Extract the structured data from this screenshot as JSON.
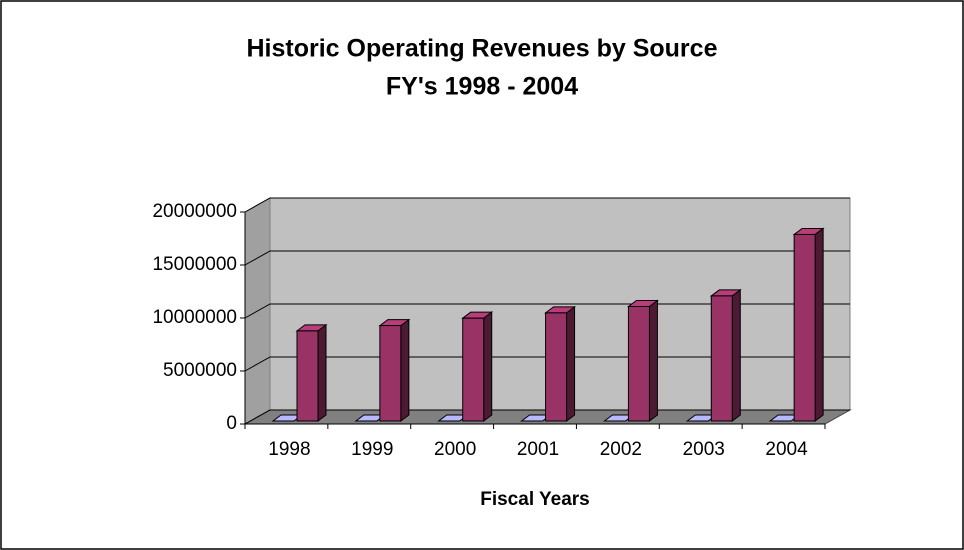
{
  "chart_data": {
    "type": "bar3d",
    "title": "Historic Operating Revenues by Source",
    "subtitle": "FY's 1998 - 2004",
    "x_label": "Fiscal Years",
    "categories": [
      "1998",
      "1999",
      "2000",
      "2001",
      "2002",
      "2003",
      "2004"
    ],
    "series": [
      {
        "color": "#9999ff",
        "values": [
          0,
          0,
          0,
          0,
          0,
          0,
          0
        ]
      },
      {
        "color": "#993366",
        "values": [
          8500000,
          9000000,
          9700000,
          10200000,
          10800000,
          11800000,
          17600000
        ]
      }
    ],
    "ylim": [
      0,
      20000000
    ],
    "yticks": [
      0,
      5000000,
      10000000,
      15000000,
      20000000
    ],
    "grid": true
  }
}
